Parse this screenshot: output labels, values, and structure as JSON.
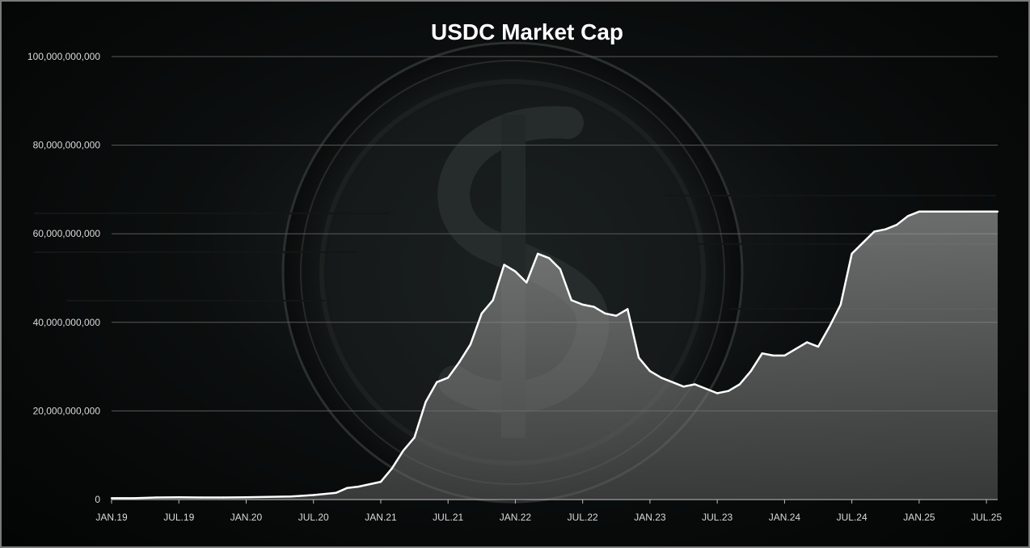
{
  "chart_data": {
    "type": "area",
    "title": "USDC Market Cap",
    "xlabel": "",
    "ylabel": "",
    "ylim": [
      0,
      100000000000
    ],
    "y_ticks": [
      "0",
      "20,000,000,000",
      "40,000,000,000",
      "60,000,000,000",
      "80,000,000,000",
      "100,000,000,000"
    ],
    "y_tick_values": [
      0,
      20000000000,
      40000000000,
      60000000000,
      80000000000,
      100000000000
    ],
    "x_ticks": [
      "JAN.19",
      "JUL.19",
      "JAN.20",
      "JUL.20",
      "JAN.21",
      "JUL.21",
      "JAN.22",
      "JUL.22",
      "JAN.23",
      "JUL.23",
      "JAN.24",
      "JUL.24",
      "JAN.25",
      "JUL.25"
    ],
    "x_tick_values": [
      "2019-01",
      "2019-07",
      "2020-01",
      "2020-07",
      "2021-01",
      "2021-07",
      "2022-01",
      "2022-07",
      "2023-01",
      "2023-07",
      "2024-01",
      "2024-07",
      "2025-01",
      "2025-07"
    ],
    "grid": true,
    "legend": "none",
    "series": [
      {
        "x": [
          "2019-01",
          "2019-03",
          "2019-05",
          "2019-07",
          "2019-09",
          "2019-11",
          "2020-01",
          "2020-03",
          "2020-05",
          "2020-07",
          "2020-09",
          "2020-10",
          "2020-11",
          "2021-01",
          "2021-02",
          "2021-03",
          "2021-04",
          "2021-05",
          "2021-06",
          "2021-07",
          "2021-08",
          "2021-09",
          "2021-10",
          "2021-11",
          "2021-12",
          "2022-01",
          "2022-02",
          "2022-03",
          "2022-04",
          "2022-05",
          "2022-06",
          "2022-07",
          "2022-08",
          "2022-09",
          "2022-10",
          "2022-11",
          "2022-12",
          "2023-01",
          "2023-02",
          "2023-03",
          "2023-04",
          "2023-05",
          "2023-06",
          "2023-07",
          "2023-08",
          "2023-09",
          "2023-10",
          "2023-11",
          "2023-12",
          "2024-01",
          "2024-02",
          "2024-03",
          "2024-04",
          "2024-05",
          "2024-06",
          "2024-07",
          "2024-08",
          "2024-09",
          "2024-10",
          "2024-11",
          "2024-12",
          "2025-01",
          "2025-02",
          "2025-03",
          "2025-04",
          "2025-05",
          "2025-06",
          "2025-07",
          "2025-08"
        ],
        "values": [
          300000000,
          300000000,
          450000000,
          500000000,
          450000000,
          450000000,
          500000000,
          600000000,
          700000000,
          1000000000,
          1500000000,
          2600000000,
          2900000000,
          4000000000,
          7000000000,
          11000000000,
          14000000000,
          22000000000,
          26500000000,
          27500000000,
          31000000000,
          35000000000,
          42000000000,
          45000000000,
          53000000000,
          51500000000,
          49000000000,
          55500000000,
          54500000000,
          52000000000,
          45000000000,
          44000000000,
          43500000000,
          42000000000,
          41500000000,
          43000000000,
          32000000000,
          29000000000,
          27500000000,
          26500000000,
          25500000000,
          26000000000,
          25000000000,
          24000000000,
          24500000000,
          26000000000,
          29000000000,
          33000000000,
          32500000000,
          32500000000,
          34000000000,
          35500000000,
          34500000000,
          39000000000,
          44000000000,
          55500000000,
          58000000000,
          60500000000,
          61000000000,
          62000000000,
          64000000000,
          65000000000,
          65000000000,
          65000000000,
          65000000000,
          65000000000,
          65000000000,
          65000000000,
          65000000000
        ]
      }
    ]
  }
}
